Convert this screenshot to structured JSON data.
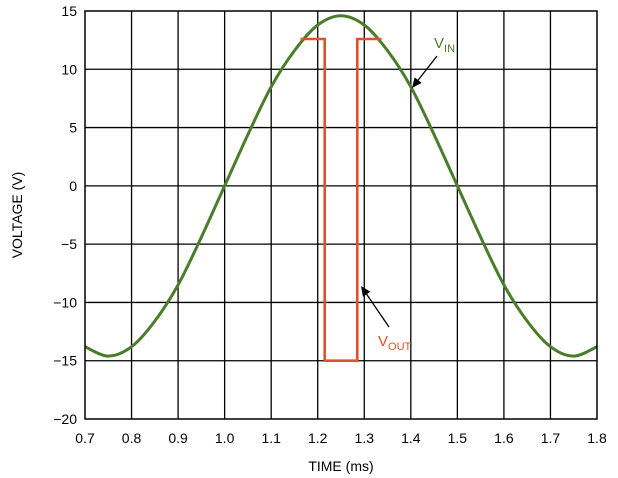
{
  "chart_data": {
    "type": "line",
    "xlabel": "TIME (ms)",
    "ylabel": "VOLTAGE (V)",
    "xlim": [
      0.7,
      1.8
    ],
    "ylim": [
      -20,
      15
    ],
    "xticks": [
      "0.7",
      "0.8",
      "0.9",
      "1.0",
      "1.1",
      "1.2",
      "1.3",
      "1.4",
      "1.5",
      "1.6",
      "1.7",
      "1.8"
    ],
    "yticks": [
      "15",
      "10",
      "5",
      "0",
      "−5",
      "−10",
      "−15",
      "−20"
    ],
    "grid": true,
    "series": [
      {
        "name": "VIN",
        "label_main": "V",
        "label_sub": "IN",
        "color": "#4a7d2a",
        "x": [
          0.7,
          0.75,
          0.8,
          0.85,
          0.9,
          0.95,
          1.0,
          1.05,
          1.1,
          1.15,
          1.2,
          1.25,
          1.3,
          1.35,
          1.4,
          1.45,
          1.5,
          1.55,
          1.6,
          1.65,
          1.7,
          1.75,
          1.8
        ],
        "y": [
          -13.8,
          -14.6,
          -13.8,
          -11.6,
          -8.5,
          -4.4,
          0.0,
          4.4,
          8.5,
          11.6,
          13.8,
          14.6,
          13.8,
          11.6,
          8.5,
          4.4,
          0.0,
          -4.4,
          -8.5,
          -11.6,
          -13.8,
          -14.6,
          -13.8
        ]
      },
      {
        "name": "VOUT",
        "label_main": "V",
        "label_sub": "OUT",
        "color": "#e0502a",
        "x": [
          1.163,
          1.215,
          1.215,
          1.285,
          1.285,
          1.337
        ],
        "y": [
          12.6,
          12.6,
          -15.0,
          -15.0,
          12.6,
          12.6
        ]
      }
    ]
  }
}
